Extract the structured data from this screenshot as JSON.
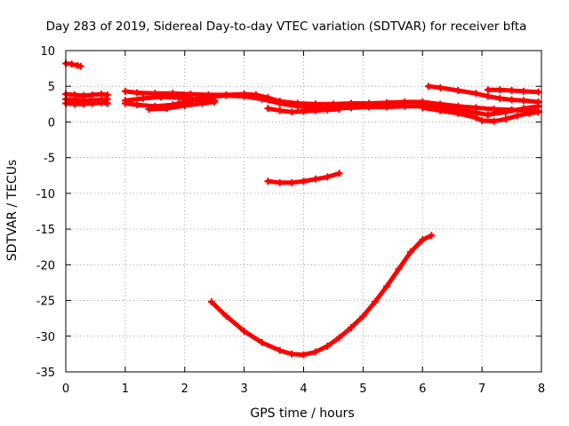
{
  "chart_data": {
    "type": "line",
    "title": "Day 283 of 2019, Sidereal Day-to-day VTEC variation (SDTVAR) for receiver bfta",
    "xlabel": "GPS time / hours",
    "ylabel": "SDTVAR / TECUs",
    "xlim": [
      0,
      8
    ],
    "ylim": [
      -35,
      10
    ],
    "x_ticks": [
      0,
      1,
      2,
      3,
      4,
      5,
      6,
      7,
      8
    ],
    "y_ticks": [
      10,
      5,
      0,
      -5,
      -10,
      -15,
      -20,
      -25,
      -30,
      -35
    ],
    "grid": true,
    "legend": "none",
    "series_color": "#ff0000",
    "series": [
      {
        "x": [
          0.0,
          0.1,
          0.2,
          0.25
        ],
        "y": [
          8.2,
          8.1,
          7.9,
          7.8
        ]
      },
      {
        "x": [
          0.0,
          0.15,
          0.3,
          0.45,
          0.6,
          0.7
        ],
        "y": [
          3.9,
          3.8,
          3.7,
          3.8,
          3.9,
          3.8
        ]
      },
      {
        "x": [
          0.0,
          0.15,
          0.3,
          0.45,
          0.6,
          0.7
        ],
        "y": [
          2.6,
          2.5,
          2.5,
          2.6,
          2.7,
          2.6
        ]
      },
      {
        "x": [
          0.0,
          0.2,
          0.4,
          0.6,
          0.7
        ],
        "y": [
          3.2,
          3.1,
          3.0,
          3.1,
          3.2
        ]
      },
      {
        "x": [
          1.0,
          1.2,
          1.5,
          1.8,
          2.1,
          2.4,
          2.7,
          3.0,
          3.2,
          3.4,
          3.6,
          3.9,
          4.2,
          4.5,
          4.8,
          5.1,
          5.4,
          5.7,
          6.0,
          6.3,
          6.6,
          6.9,
          7.2,
          7.5,
          7.8,
          7.95
        ],
        "y": [
          4.3,
          4.1,
          4.0,
          4.0,
          3.9,
          3.8,
          3.8,
          3.9,
          3.8,
          3.4,
          2.9,
          2.6,
          2.5,
          2.5,
          2.6,
          2.6,
          2.7,
          2.8,
          2.8,
          2.5,
          2.2,
          2.0,
          1.8,
          1.7,
          1.6,
          1.5
        ]
      },
      {
        "x": [
          1.0,
          1.2,
          1.5,
          1.8,
          2.1,
          2.4,
          2.7,
          3.0,
          3.3,
          3.6,
          3.9,
          4.2,
          4.5,
          4.8,
          5.1,
          5.4,
          5.7,
          6.0,
          6.3,
          6.6,
          6.9,
          7.1,
          7.4,
          7.7,
          7.95
        ],
        "y": [
          2.6,
          2.4,
          2.2,
          2.4,
          3.0,
          3.5,
          3.7,
          3.6,
          3.2,
          2.6,
          2.2,
          2.0,
          1.9,
          2.0,
          2.1,
          2.1,
          2.2,
          2.2,
          2.0,
          1.7,
          1.3,
          1.0,
          1.4,
          1.9,
          2.2
        ]
      },
      {
        "x": [
          1.0,
          1.3,
          1.6,
          1.9,
          2.2,
          2.5
        ],
        "y": [
          3.0,
          3.3,
          3.5,
          3.4,
          3.2,
          3.0
        ]
      },
      {
        "x": [
          1.4,
          1.7,
          2.0,
          2.3,
          2.5
        ],
        "y": [
          1.8,
          1.9,
          2.3,
          2.6,
          2.8
        ]
      },
      {
        "x": [
          3.4,
          3.6,
          3.8,
          4.0,
          4.2,
          4.4,
          4.6
        ],
        "y": [
          1.9,
          1.6,
          1.4,
          1.5,
          1.6,
          1.7,
          1.8
        ]
      },
      {
        "x": [
          6.1,
          6.3,
          6.6,
          6.9,
          7.1,
          7.3,
          7.5,
          7.7,
          7.95
        ],
        "y": [
          5.0,
          4.8,
          4.4,
          4.0,
          3.6,
          3.3,
          3.1,
          3.0,
          2.8
        ]
      },
      {
        "x": [
          6.0,
          6.3,
          6.6,
          6.9,
          7.0,
          7.2,
          7.4,
          7.6,
          7.8,
          7.95
        ],
        "y": [
          2.0,
          1.6,
          1.2,
          0.6,
          0.2,
          0.1,
          0.4,
          0.9,
          1.2,
          1.4
        ]
      },
      {
        "x": [
          7.1,
          7.3,
          7.5,
          7.7,
          7.95
        ],
        "y": [
          4.5,
          4.5,
          4.4,
          4.3,
          4.2
        ]
      },
      {
        "x": [
          3.4,
          3.6,
          3.8,
          4.0,
          4.2,
          4.4,
          4.6
        ],
        "y": [
          -8.3,
          -8.5,
          -8.5,
          -8.3,
          -8.0,
          -7.7,
          -7.2
        ]
      },
      {
        "x": [
          2.45,
          2.7,
          3.0,
          3.3,
          3.6,
          3.8,
          4.0,
          4.2,
          4.4,
          4.6,
          4.8,
          5.0,
          5.2,
          5.4,
          5.6,
          5.8,
          6.0,
          6.15
        ],
        "y": [
          -25.2,
          -27.2,
          -29.3,
          -30.9,
          -32.0,
          -32.5,
          -32.6,
          -32.2,
          -31.4,
          -30.2,
          -28.8,
          -27.2,
          -25.2,
          -23.0,
          -20.6,
          -18.2,
          -16.5,
          -15.9
        ]
      }
    ]
  }
}
